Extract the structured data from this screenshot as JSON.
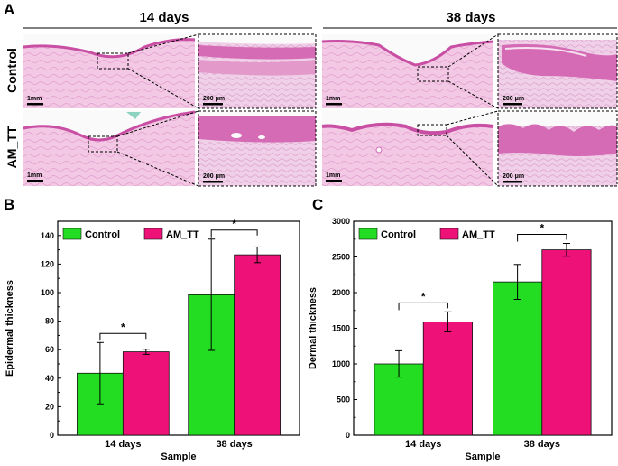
{
  "panel_a": {
    "letter": "A",
    "header_left": "14 days",
    "header_right": "38 days",
    "row_control": "Control",
    "row_am": "AM_TT",
    "scale_1mm": "1mm",
    "scale_200": "200 μm"
  },
  "colors": {
    "control": "#22dd22",
    "am_tt": "#ee1177",
    "tissue": "#f2c8e4",
    "tissue_dark": "#d66bb5"
  },
  "chart_data": [
    {
      "type": "bar",
      "letter": "B",
      "categories": [
        "14 days",
        "38 days"
      ],
      "series": [
        {
          "name": "Control",
          "values": [
            43.5,
            98.5
          ],
          "errors": [
            21.5,
            39
          ]
        },
        {
          "name": "AM_TT",
          "values": [
            58.5,
            126.5
          ],
          "errors": [
            1.8,
            5.5
          ]
        }
      ],
      "significance": [
        "*",
        "*"
      ],
      "xlabel": "Sample",
      "ylabel": "Epidermal thickness",
      "ylim": [
        0,
        150
      ],
      "yticks": [
        "0",
        "20",
        "40",
        "60",
        "80",
        "100",
        "120",
        "140"
      ],
      "legend": "top-left"
    },
    {
      "type": "bar",
      "letter": "C",
      "categories": [
        "14 days",
        "38 days"
      ],
      "series": [
        {
          "name": "Control",
          "values": [
            1000,
            2150
          ],
          "errors": [
            185,
            245
          ]
        },
        {
          "name": "AM_TT",
          "values": [
            1590,
            2600
          ],
          "errors": [
            140,
            90
          ]
        }
      ],
      "significance": [
        "*",
        "*"
      ],
      "xlabel": "Sample",
      "ylabel": "Dermal thickness",
      "ylim": [
        0,
        3000
      ],
      "yticks": [
        "0",
        "500",
        "1000",
        "1500",
        "2000",
        "2500",
        "3000"
      ],
      "legend": "top-left"
    }
  ]
}
